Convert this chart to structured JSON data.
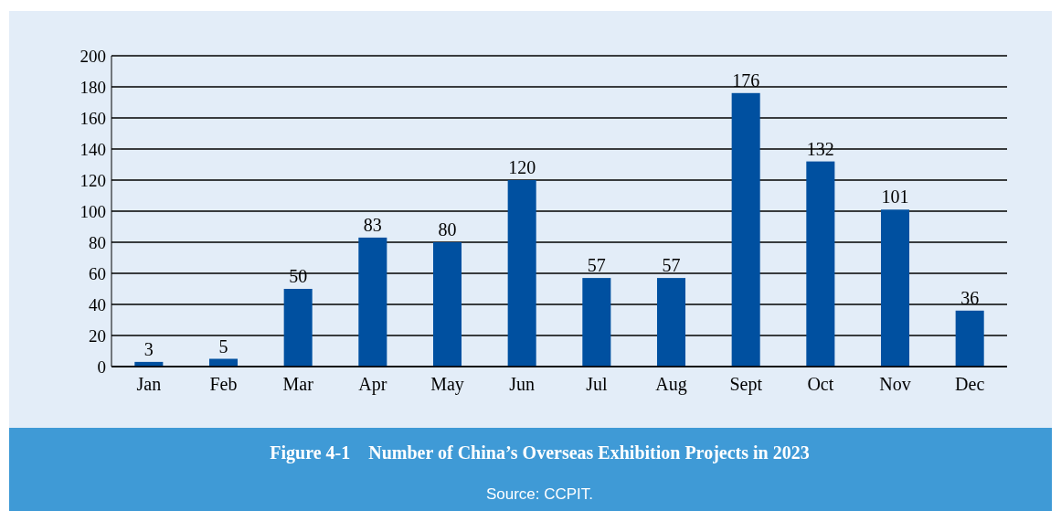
{
  "chart_data": {
    "type": "bar",
    "title": "Figure 4-1    Number of China’s Overseas Exhibition Projects in 2023",
    "annotations": [
      "Source: CCPIT."
    ],
    "categories": [
      "Jan",
      "Feb",
      "Mar",
      "Apr",
      "May",
      "Jun",
      "Jul",
      "Aug",
      "Sept",
      "Oct",
      "Nov",
      "Dec"
    ],
    "values": [
      3,
      5,
      50,
      83,
      80,
      120,
      57,
      57,
      176,
      132,
      101,
      36
    ],
    "color": "#0050a0",
    "ylim": [
      0,
      200
    ],
    "yticks": [
      0,
      20,
      40,
      60,
      80,
      100,
      120,
      140,
      160,
      180,
      200
    ],
    "grid": "y",
    "data_labels": true
  }
}
